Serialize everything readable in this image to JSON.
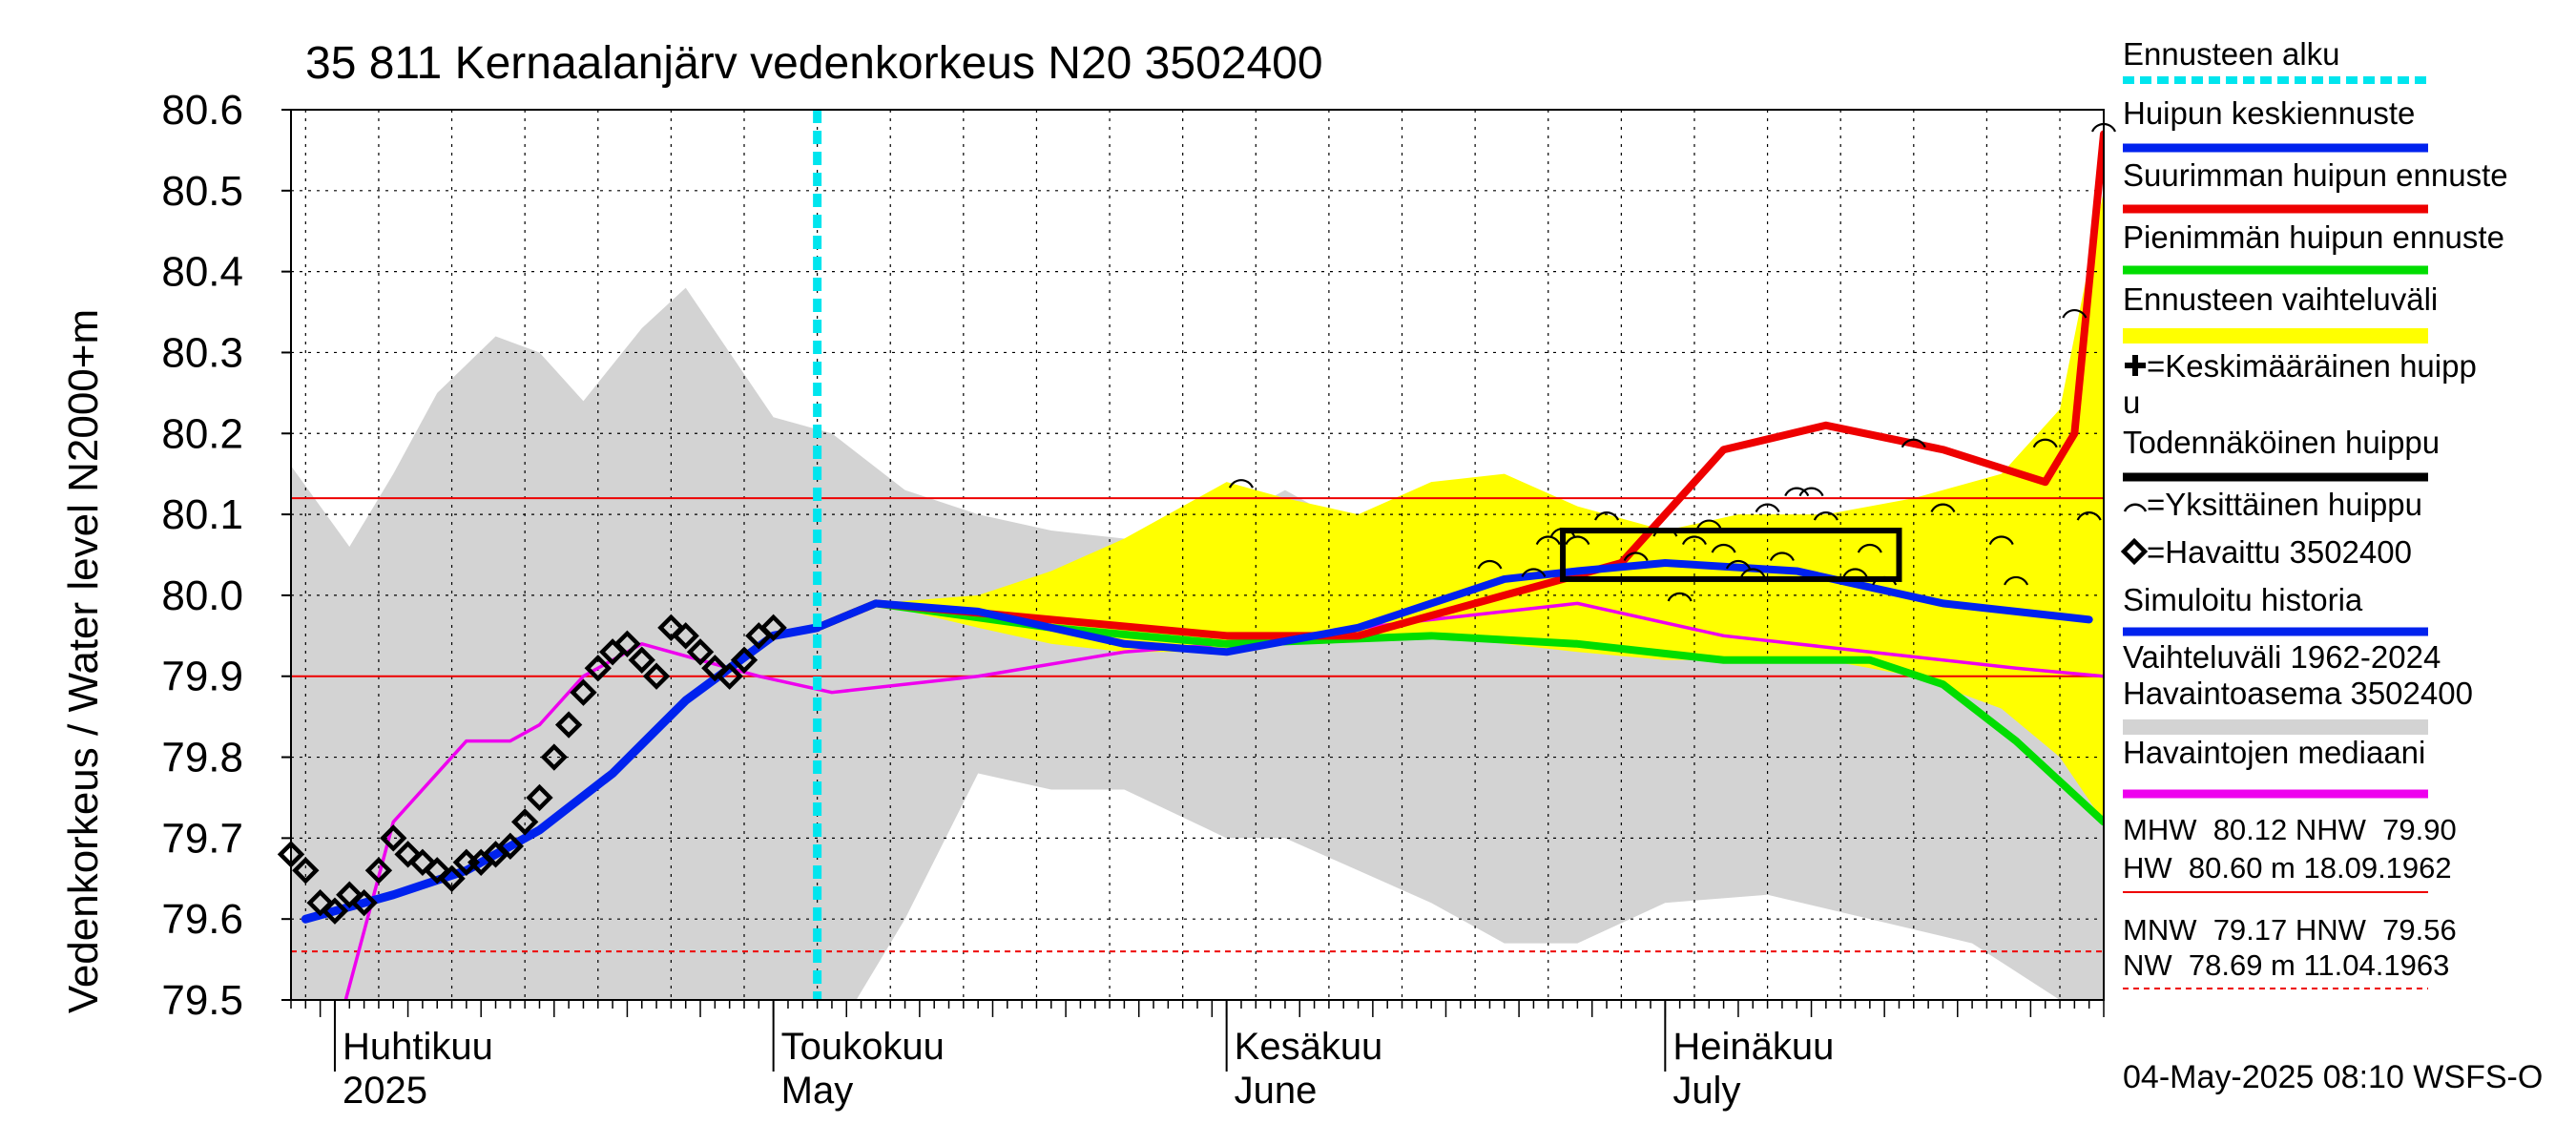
{
  "chart_data": {
    "type": "line",
    "title": "35 811 Kernaalanjärv vedenkorkeus N20 3502400",
    "ylabel": "Vedenkorkeus / Water level   N2000+m",
    "ylim": [
      79.5,
      80.6
    ],
    "yticks": [
      "79.5",
      "79.6",
      "79.7",
      "79.8",
      "79.9",
      "80.0",
      "80.1",
      "80.2",
      "80.3",
      "80.4",
      "80.5",
      "80.6"
    ],
    "xlim": [
      "2025-03-29",
      "2025-07-31"
    ],
    "x_labels": [
      {
        "date": "2025-04-01",
        "fi": "Huhtikuu",
        "en": "2025"
      },
      {
        "date": "2025-05-01",
        "fi": "Toukokuu",
        "en": "May"
      },
      {
        "date": "2025-06-01",
        "fi": "Kesäkuu",
        "en": "June"
      },
      {
        "date": "2025-07-01",
        "fi": "Heinäkuu",
        "en": "July"
      }
    ],
    "grid": true,
    "forecast_start": "2025-05-04",
    "reference_lines": {
      "MHW": 80.12,
      "NHW": 79.9,
      "HNW": 79.56,
      "HW": 80.6
    },
    "legend_position": "right",
    "legend": [
      {
        "label": "Ennusteen alku",
        "color": "#00e5ee",
        "style": "dotted"
      },
      {
        "label": "Huipun keskiennuste",
        "color": "#0022ee",
        "style": "line"
      },
      {
        "label": "Suurimman huipun ennuste",
        "color": "#ee0000",
        "style": "line"
      },
      {
        "label": "Pienimmän huipun ennuste",
        "color": "#00dd00",
        "style": "line"
      },
      {
        "label": "Ennusteen vaihteluväli",
        "color": "#ffff00",
        "style": "band"
      },
      {
        "label": "=Keskimääräinen huipp",
        "label2": "u",
        "color": "#000000",
        "style": "plus"
      },
      {
        "label": "Todennäköinen huippu",
        "color": "#000000",
        "style": "line"
      },
      {
        "label": "=Yksittäinen huippu",
        "color": "#000000",
        "style": "arc"
      },
      {
        "label": "=Havaittu 3502400",
        "color": "#000000",
        "style": "diamond"
      },
      {
        "label": "Simuloitu historia",
        "color": "#0022ee",
        "style": "line"
      },
      {
        "label": "Vaihteluväli 1962-2024",
        "label2": " Havaintoasema 3502400",
        "color": "#d3d3d3",
        "style": "band"
      },
      {
        "label": "Havaintojen mediaani",
        "color": "#ee00ee",
        "style": "line"
      }
    ],
    "stats": [
      "MHW  80.12 NHW  79.90",
      "HW  80.60 m 18.09.1962",
      "MNW  79.17 HNW  79.56",
      "NW  78.69 m 11.04.1963"
    ],
    "timestamp": "04-May-2025 08:10 WSFS-O",
    "colors": {
      "history_band": "#d3d3d3",
      "forecast_band": "#ffff00",
      "mean_peak": "#0022ee",
      "max_peak": "#ee0000",
      "min_peak": "#00dd00",
      "median": "#ee00ee",
      "forecast_start": "#00e5ee",
      "ref_line": "#ee0000",
      "grid": "#000000"
    },
    "series": [
      {
        "name": "Simuloitu historia",
        "x": [
          "2025-03-30",
          "2025-04-05",
          "2025-04-10",
          "2025-04-15",
          "2025-04-20",
          "2025-04-25",
          "2025-04-28",
          "2025-05-01",
          "2025-05-04"
        ],
        "values": [
          79.6,
          79.63,
          79.66,
          79.71,
          79.78,
          79.87,
          79.91,
          79.95,
          79.96
        ]
      },
      {
        "name": "Huipun keskiennuste",
        "x": [
          "2025-05-04",
          "2025-05-08",
          "2025-05-15",
          "2025-05-25",
          "2025-06-01",
          "2025-06-10",
          "2025-06-20",
          "2025-06-25",
          "2025-07-01",
          "2025-07-10",
          "2025-07-20",
          "2025-07-30"
        ],
        "values": [
          79.96,
          79.99,
          79.98,
          79.94,
          79.93,
          79.96,
          80.02,
          80.03,
          80.04,
          80.03,
          79.99,
          79.97
        ]
      },
      {
        "name": "Suurimman huipun ennuste",
        "x": [
          "2025-05-04",
          "2025-05-08",
          "2025-05-20",
          "2025-06-01",
          "2025-06-10",
          "2025-06-20",
          "2025-06-28",
          "2025-07-05",
          "2025-07-12",
          "2025-07-20",
          "2025-07-27",
          "2025-07-29",
          "2025-07-31"
        ],
        "values": [
          79.96,
          79.99,
          79.97,
          79.95,
          79.95,
          80.0,
          80.04,
          80.18,
          80.21,
          80.18,
          80.14,
          80.2,
          80.57
        ]
      },
      {
        "name": "Pienimmän huipun ennuste",
        "x": [
          "2025-05-04",
          "2025-05-08",
          "2025-05-20",
          "2025-06-01",
          "2025-06-15",
          "2025-06-25",
          "2025-07-05",
          "2025-07-15",
          "2025-07-20",
          "2025-07-25",
          "2025-07-31"
        ],
        "values": [
          79.96,
          79.99,
          79.96,
          79.94,
          79.95,
          79.94,
          79.92,
          79.92,
          79.89,
          79.82,
          79.72
        ]
      },
      {
        "name": "Havaintojen mediaani",
        "x": [
          "2025-03-29",
          "2025-04-01",
          "2025-04-05",
          "2025-04-10",
          "2025-04-13",
          "2025-04-15",
          "2025-04-18",
          "2025-04-22",
          "2025-04-26",
          "2025-04-30",
          "2025-05-05",
          "2025-05-15",
          "2025-05-25",
          "2025-06-01",
          "2025-06-15",
          "2025-06-25",
          "2025-07-05",
          "2025-07-15",
          "2025-07-25",
          "2025-07-31"
        ],
        "values": [
          79.5,
          79.45,
          79.72,
          79.82,
          79.82,
          79.84,
          79.9,
          79.94,
          79.92,
          79.9,
          79.88,
          79.9,
          79.93,
          79.94,
          79.97,
          79.99,
          79.95,
          79.93,
          79.91,
          79.9
        ]
      },
      {
        "name": "Havaittu 3502400",
        "x": [
          "2025-03-29",
          "2025-03-30",
          "2025-03-31",
          "2025-04-01",
          "2025-04-02",
          "2025-04-03",
          "2025-04-04",
          "2025-04-05",
          "2025-04-06",
          "2025-04-07",
          "2025-04-08",
          "2025-04-09",
          "2025-04-10",
          "2025-04-11",
          "2025-04-12",
          "2025-04-13",
          "2025-04-14",
          "2025-04-15",
          "2025-04-16",
          "2025-04-17",
          "2025-04-18",
          "2025-04-19",
          "2025-04-20",
          "2025-04-21",
          "2025-04-22",
          "2025-04-23",
          "2025-04-24",
          "2025-04-25",
          "2025-04-26",
          "2025-04-27",
          "2025-04-28",
          "2025-04-29",
          "2025-04-30",
          "2025-05-01"
        ],
        "values": [
          79.68,
          79.66,
          79.62,
          79.61,
          79.63,
          79.62,
          79.66,
          79.7,
          79.68,
          79.67,
          79.66,
          79.65,
          79.67,
          79.67,
          79.68,
          79.69,
          79.72,
          79.75,
          79.8,
          79.84,
          79.88,
          79.91,
          79.93,
          79.94,
          79.92,
          79.9,
          79.96,
          79.95,
          79.93,
          79.91,
          79.9,
          79.92,
          79.95,
          79.96
        ]
      }
    ],
    "bands": [
      {
        "name": "Vaihteluväli 1962-2024",
        "x": [
          "2025-03-29",
          "2025-04-02",
          "2025-04-05",
          "2025-04-08",
          "2025-04-12",
          "2025-04-15",
          "2025-04-18",
          "2025-04-22",
          "2025-04-25",
          "2025-04-28",
          "2025-05-01",
          "2025-05-05",
          "2025-05-10",
          "2025-05-15",
          "2025-05-20",
          "2025-05-25",
          "2025-06-01",
          "2025-06-05",
          "2025-06-10",
          "2025-06-15",
          "2025-06-20",
          "2025-06-25",
          "2025-07-01",
          "2025-07-08",
          "2025-07-15",
          "2025-07-22",
          "2025-07-28",
          "2025-07-31"
        ],
        "upper": [
          80.16,
          80.06,
          80.15,
          80.25,
          80.32,
          80.3,
          80.24,
          80.33,
          80.38,
          80.3,
          80.22,
          80.2,
          80.13,
          80.1,
          80.08,
          80.07,
          80.09,
          80.13,
          80.08,
          80.11,
          80.13,
          80.1,
          80.05,
          80.04,
          80.02,
          80.0,
          80.0,
          79.98
        ],
        "lower": [
          79.5,
          79.48,
          79.45,
          79.44,
          79.42,
          79.41,
          79.4,
          79.4,
          79.39,
          79.4,
          79.42,
          79.45,
          79.6,
          79.78,
          79.76,
          79.76,
          79.7,
          79.7,
          79.66,
          79.62,
          79.57,
          79.57,
          79.62,
          79.63,
          79.6,
          79.57,
          79.5,
          79.48
        ]
      },
      {
        "name": "Ennusteen vaihteluväli",
        "x": [
          "2025-05-04",
          "2025-05-08",
          "2025-05-15",
          "2025-05-20",
          "2025-05-25",
          "2025-06-01",
          "2025-06-05",
          "2025-06-10",
          "2025-06-15",
          "2025-06-20",
          "2025-06-25",
          "2025-07-01",
          "2025-07-06",
          "2025-07-12",
          "2025-07-18",
          "2025-07-24",
          "2025-07-28",
          "2025-07-31"
        ],
        "upper": [
          79.96,
          79.99,
          80.0,
          80.03,
          80.07,
          80.14,
          80.12,
          80.1,
          80.14,
          80.15,
          80.11,
          80.08,
          80.1,
          80.1,
          80.12,
          80.15,
          80.23,
          80.5
        ],
        "lower": [
          79.96,
          79.99,
          79.96,
          79.94,
          79.93,
          79.93,
          79.94,
          79.95,
          79.95,
          79.94,
          79.93,
          79.92,
          79.92,
          79.92,
          79.9,
          79.86,
          79.8,
          79.72
        ]
      }
    ],
    "individual_peaks": {
      "x": [
        "2025-06-02",
        "2025-06-19",
        "2025-06-22",
        "2025-06-23",
        "2025-06-24",
        "2025-06-25",
        "2025-06-27",
        "2025-06-29",
        "2025-07-01",
        "2025-07-02",
        "2025-07-03",
        "2025-07-04",
        "2025-07-05",
        "2025-07-06",
        "2025-07-07",
        "2025-07-08",
        "2025-07-09",
        "2025-07-10",
        "2025-07-11",
        "2025-07-12",
        "2025-07-14",
        "2025-07-15",
        "2025-07-16",
        "2025-07-18",
        "2025-07-20",
        "2025-07-24",
        "2025-07-25",
        "2025-07-27",
        "2025-07-29",
        "2025-07-30",
        "2025-07-31"
      ],
      "values": [
        80.14,
        80.04,
        80.03,
        80.07,
        80.08,
        80.07,
        80.1,
        80.05,
        80.08,
        80.0,
        80.07,
        80.09,
        80.06,
        80.04,
        80.03,
        80.11,
        80.05,
        80.13,
        80.13,
        80.1,
        80.03,
        80.06,
        80.02,
        80.19,
        80.11,
        80.07,
        80.02,
        80.19,
        80.35,
        80.1,
        80.58
      ]
    },
    "probable_peak_box": {
      "x": [
        "2025-06-24",
        "2025-07-17"
      ],
      "y": [
        80.02,
        80.08
      ]
    }
  }
}
